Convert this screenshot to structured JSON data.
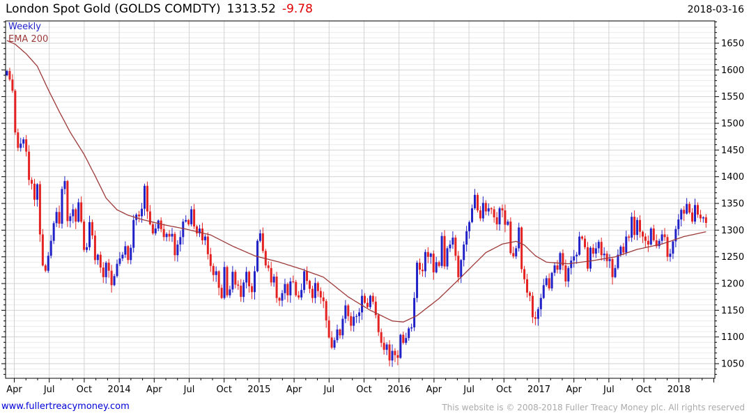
{
  "header": {
    "title": "London Spot Gold (GOLDS COMDTY)",
    "last_price": "1313.52",
    "change": "-9.78",
    "date": "2018-03-16"
  },
  "legend": {
    "timeframe": "Weekly",
    "overlay": "EMA 200"
  },
  "footer": {
    "site_link": "www.fullertreacymoney.com",
    "copyright": "This website is © 2008-2018 Fuller Treacy Money plc. All rights reserved"
  },
  "colors": {
    "up_candle": "#2121c8",
    "down_candle": "#e42222",
    "ema_line": "#9e3939",
    "grid_minor": "#ececec",
    "grid_major": "#d2d2d2",
    "axis": "#000000",
    "change_negative": "#e00000",
    "timeframe_label": "#2323cc",
    "link": "#0000d8",
    "copyright_text": "#aaaaaa"
  },
  "chart_data": {
    "type": "candlestick",
    "title": "London Spot Gold (GOLDS COMDTY)",
    "timeframe": "Weekly",
    "overlay": "EMA 200",
    "last_price": 1313.52,
    "change": -9.78,
    "x_tick_labels": [
      "Apr",
      "Jul",
      "Oct",
      "2014",
      "Apr",
      "Jul",
      "Oct",
      "2015",
      "Apr",
      "Jul",
      "Oct",
      "2016",
      "Apr",
      "Jul",
      "Oct",
      "2017",
      "Apr",
      "Jul",
      "Oct",
      "2018"
    ],
    "y_tick_labels": [
      1050,
      1100,
      1150,
      1200,
      1250,
      1300,
      1350,
      1400,
      1450,
      1500,
      1550,
      1600,
      1650
    ],
    "y_minor_step": 10,
    "ylim": [
      1020,
      1692
    ],
    "grid": "on",
    "first_open": 1590,
    "weekly_closes": [
      1598,
      1582,
      1561,
      1483,
      1454,
      1462,
      1470,
      1447,
      1394,
      1387,
      1357,
      1386,
      1292,
      1234,
      1224,
      1252,
      1280,
      1313,
      1334,
      1312,
      1377,
      1392,
      1317,
      1326,
      1339,
      1316,
      1352,
      1316,
      1263,
      1268,
      1315,
      1290,
      1244,
      1254,
      1230,
      1212,
      1239,
      1224,
      1197,
      1214,
      1237,
      1247,
      1254,
      1270,
      1244,
      1267,
      1319,
      1329,
      1326,
      1340,
      1383,
      1335,
      1311,
      1294,
      1303,
      1318,
      1302,
      1287,
      1293,
      1288,
      1293,
      1253,
      1273,
      1287,
      1316,
      1319,
      1311,
      1339,
      1307,
      1294,
      1303,
      1281,
      1288,
      1255,
      1233,
      1216,
      1223,
      1192,
      1173,
      1231,
      1178,
      1189,
      1222,
      1198,
      1196,
      1175,
      1202,
      1222,
      1195,
      1184,
      1223,
      1280,
      1294,
      1261,
      1234,
      1229,
      1202,
      1213,
      1173,
      1168,
      1182,
      1199,
      1178,
      1204,
      1203,
      1178,
      1174,
      1188,
      1223,
      1205,
      1190,
      1173,
      1201,
      1186,
      1174,
      1167,
      1131,
      1099,
      1080,
      1094,
      1114,
      1103,
      1134,
      1159,
      1139,
      1121,
      1138,
      1139,
      1146,
      1177,
      1164,
      1156,
      1177,
      1166,
      1141,
      1109,
      1089,
      1076,
      1086,
      1056,
      1074,
      1066,
      1061,
      1104,
      1089,
      1098,
      1116,
      1118,
      1173,
      1239,
      1226,
      1223,
      1259,
      1250,
      1256,
      1221,
      1240,
      1233,
      1289,
      1232,
      1266,
      1273,
      1286,
      1252,
      1212,
      1244,
      1273,
      1298,
      1315,
      1341,
      1366,
      1337,
      1322,
      1351,
      1335,
      1341,
      1339,
      1324,
      1311,
      1341,
      1337,
      1310,
      1316,
      1257,
      1251,
      1266,
      1305,
      1227,
      1208,
      1183,
      1177,
      1137,
      1134,
      1152,
      1173,
      1197,
      1210,
      1191,
      1220,
      1234,
      1226,
      1257,
      1234,
      1204,
      1229,
      1243,
      1251,
      1254,
      1288,
      1284,
      1268,
      1228,
      1267,
      1256,
      1266,
      1278,
      1253,
      1256,
      1242,
      1246,
      1212,
      1229,
      1254,
      1269,
      1258,
      1288,
      1286,
      1325,
      1291,
      1319,
      1297,
      1288,
      1280,
      1273,
      1303,
      1281,
      1270,
      1280,
      1292,
      1287,
      1250,
      1256,
      1279,
      1302,
      1320,
      1338,
      1331,
      1349,
      1333,
      1316,
      1347,
      1329,
      1322,
      1324,
      1313.52
    ],
    "ema_anchors": [
      [
        0,
        1655
      ],
      [
        3,
        1648
      ],
      [
        7,
        1630
      ],
      [
        11,
        1607
      ],
      [
        15,
        1563
      ],
      [
        19,
        1522
      ],
      [
        23,
        1483
      ],
      [
        28,
        1442
      ],
      [
        32,
        1402
      ],
      [
        36,
        1360
      ],
      [
        40,
        1338
      ],
      [
        44,
        1328
      ],
      [
        49,
        1320
      ],
      [
        57,
        1310
      ],
      [
        65,
        1302
      ],
      [
        74,
        1291
      ],
      [
        82,
        1270
      ],
      [
        90,
        1252
      ],
      [
        99,
        1240
      ],
      [
        107,
        1227
      ],
      [
        115,
        1212
      ],
      [
        124,
        1175
      ],
      [
        132,
        1150
      ],
      [
        140,
        1130
      ],
      [
        144,
        1128
      ],
      [
        149,
        1140
      ],
      [
        157,
        1172
      ],
      [
        165,
        1212
      ],
      [
        174,
        1258
      ],
      [
        180,
        1274
      ],
      [
        185,
        1279
      ],
      [
        188,
        1272
      ],
      [
        192,
        1252
      ],
      [
        196,
        1240
      ],
      [
        204,
        1237
      ],
      [
        213,
        1243
      ],
      [
        221,
        1250
      ],
      [
        229,
        1264
      ],
      [
        238,
        1274
      ],
      [
        246,
        1288
      ],
      [
        254,
        1297
      ]
    ]
  }
}
